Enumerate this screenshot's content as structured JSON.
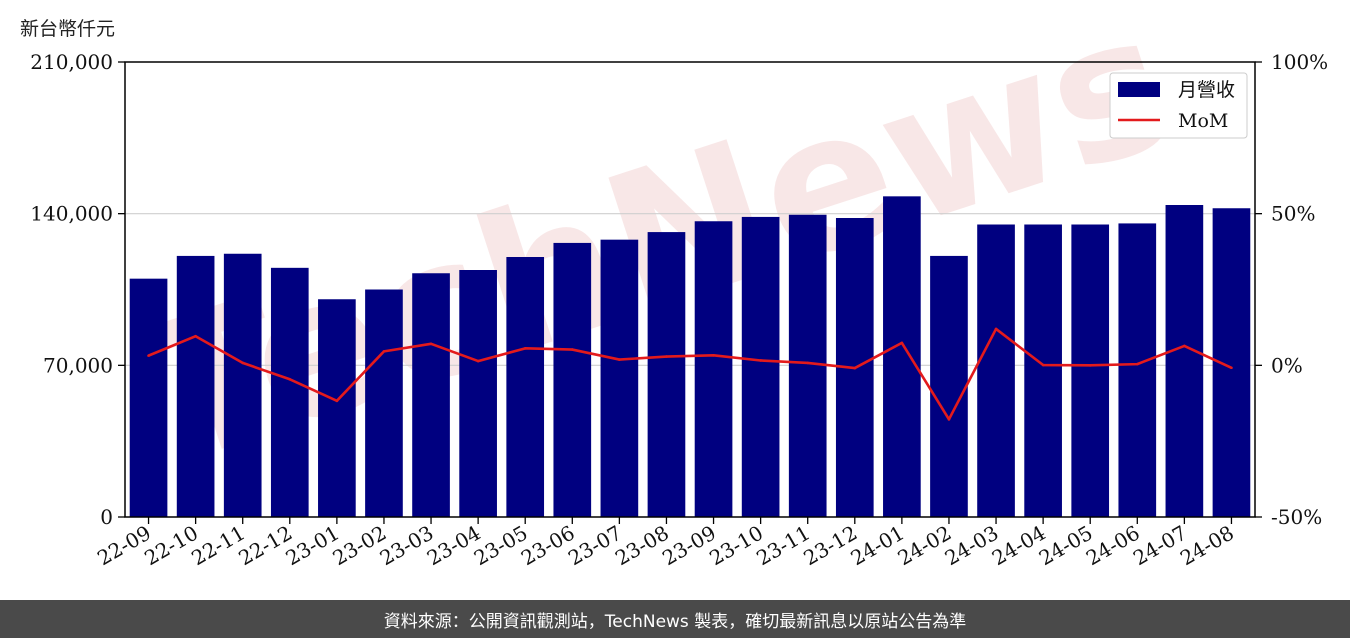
{
  "chart_data": {
    "type": "bar",
    "y_unit_label": "新台幣仟元",
    "categories": [
      "22-09",
      "22-10",
      "22-11",
      "22-12",
      "23-01",
      "23-02",
      "23-03",
      "23-04",
      "23-05",
      "23-06",
      "23-07",
      "23-08",
      "23-09",
      "23-10",
      "23-11",
      "23-12",
      "24-01",
      "24-02",
      "24-03",
      "24-04",
      "24-05",
      "24-06",
      "24-07",
      "24-08"
    ],
    "series": [
      {
        "name": "月營收",
        "type": "bar",
        "axis": "left",
        "color": "#000080",
        "values": [
          110000,
          120500,
          121500,
          115000,
          100500,
          105000,
          112500,
          114000,
          120000,
          126500,
          128000,
          131500,
          136500,
          138500,
          139500,
          138000,
          148000,
          120500,
          135000,
          135000,
          135000,
          135500,
          144000,
          142500
        ]
      },
      {
        "name": "MoM",
        "type": "line",
        "axis": "right",
        "color": "#e31a1c",
        "values": [
          3.2,
          9.6,
          0.8,
          -4.6,
          -11.7,
          4.6,
          7.1,
          1.4,
          5.6,
          5.2,
          1.9,
          2.9,
          3.3,
          1.6,
          0.8,
          -0.9,
          7.4,
          -17.8,
          12.0,
          0.1,
          0.0,
          0.4,
          6.4,
          -0.8
        ]
      }
    ],
    "y_left": {
      "min": 0,
      "max": 210000,
      "ticks": [
        "0",
        "70,000",
        "140,000",
        "210,000"
      ],
      "tick_values": [
        0,
        70000,
        140000,
        210000
      ]
    },
    "y_right": {
      "min": -50,
      "max": 100,
      "ticks": [
        "-50%",
        "0%",
        "50%",
        "100%"
      ],
      "tick_values": [
        -50,
        0,
        50,
        100
      ]
    },
    "grid": "horizontal",
    "legend_position": "top-right",
    "watermark": "TechNews"
  },
  "footer": {
    "source_text": "資料來源：公開資訊觀測站，TechNews 製表，確切最新訊息以原站公告為準"
  }
}
